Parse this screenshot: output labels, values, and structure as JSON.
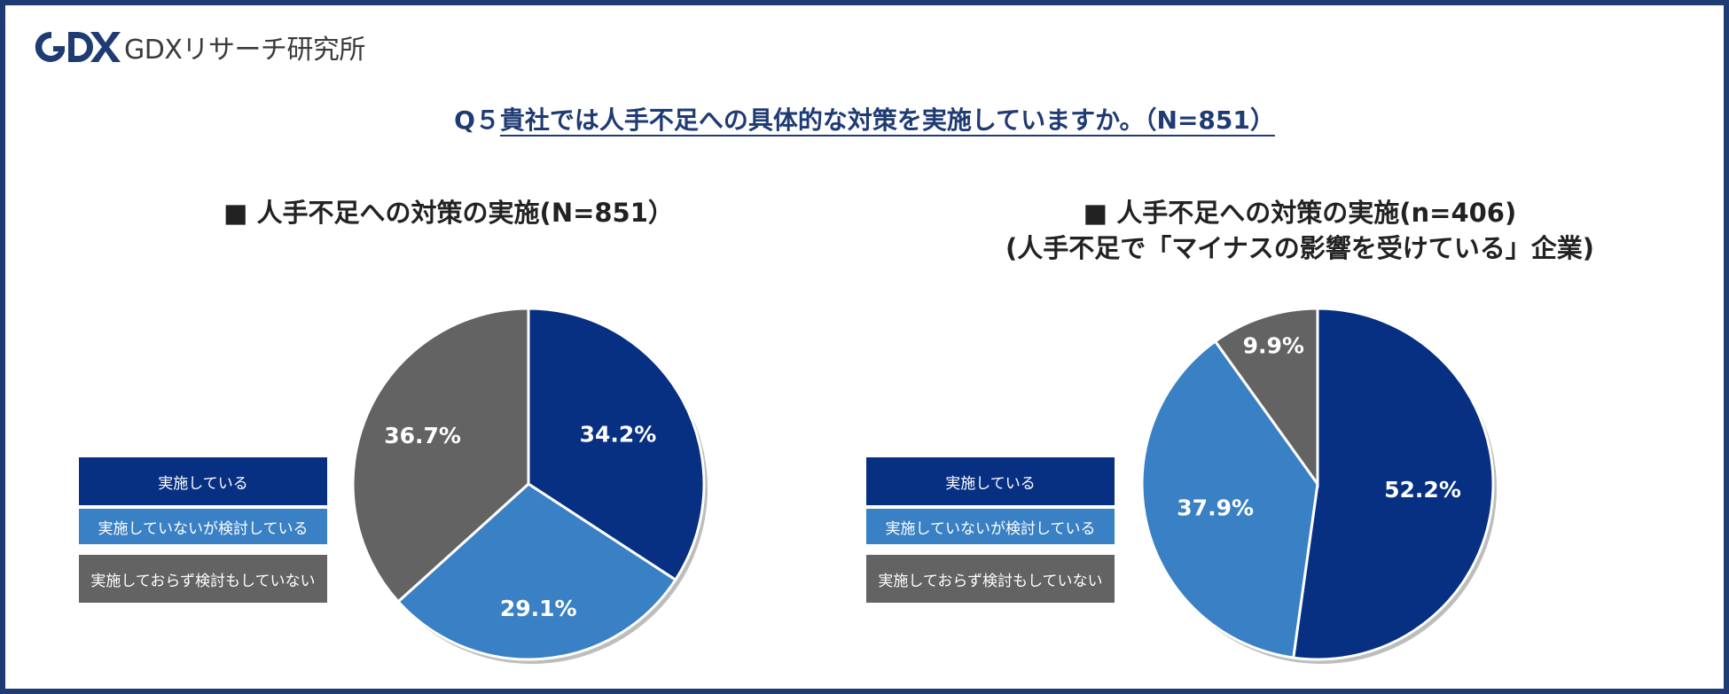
{
  "header": {
    "logo_text": "GDXリサーチ研究所",
    "logo_icon": "gdx-logo-icon"
  },
  "question": {
    "number": "Q５",
    "text": "貴社では人手不足への具体的な対策を実施していますか。（N=851）"
  },
  "colors": {
    "navy": "#073083",
    "blue": "#3a80c4",
    "gray": "#636363",
    "frame": "#1f3b73"
  },
  "chart_data": [
    {
      "type": "pie",
      "title": "■ 人手不足への対策の実施(N=851）",
      "subtitle": "",
      "categories": [
        "実施している",
        "実施していないが検討している",
        "実施しておらず検討もしていない"
      ],
      "values": [
        34.2,
        29.1,
        36.7
      ],
      "value_labels": [
        "34.2%",
        "29.1%",
        "36.7%"
      ],
      "legend_position": "left"
    },
    {
      "type": "pie",
      "title": "■ 人手不足への対策の実施(n=406)",
      "subtitle": "(人手不足で「マイナスの影響を受けている」企業)",
      "categories": [
        "実施している",
        "実施していないが検討している",
        "実施しておらず検討もしていない"
      ],
      "values": [
        52.2,
        37.9,
        9.9
      ],
      "value_labels": [
        "52.2%",
        "37.9%",
        "9.9%"
      ],
      "legend_position": "left"
    }
  ]
}
